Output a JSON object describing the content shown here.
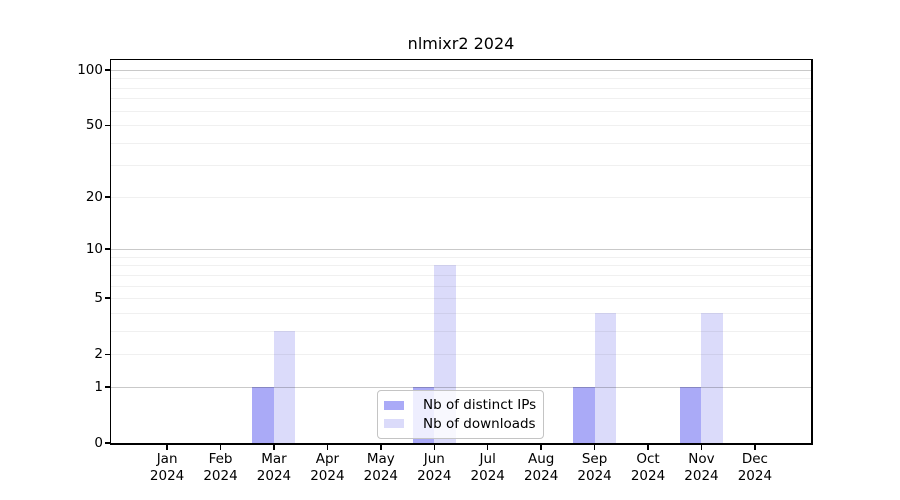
{
  "figure": {
    "title": "nlmixr2 2024"
  },
  "chart_data": {
    "type": "bar",
    "title": "nlmixr2 2024",
    "categories": [
      "Jan",
      "Feb",
      "Mar",
      "Apr",
      "May",
      "Jun",
      "Jul",
      "Aug",
      "Sep",
      "Oct",
      "Nov",
      "Dec"
    ],
    "x_year": "2024",
    "series": [
      {
        "name": "Nb of distinct IPs",
        "color": "#aaaaf7",
        "values": [
          0,
          0,
          1,
          0,
          0,
          1,
          0,
          0,
          1,
          0,
          1,
          0
        ]
      },
      {
        "name": "Nb of downloads",
        "color": "#dbdbfa",
        "values": [
          0,
          0,
          3,
          0,
          0,
          8,
          0,
          0,
          4,
          0,
          4,
          0
        ]
      }
    ],
    "yscale": "log1p",
    "ylim": [
      0,
      113
    ],
    "yticks": [
      0,
      1,
      2,
      5,
      10,
      20,
      50,
      100
    ],
    "minor_gridlines": [
      2,
      3,
      4,
      5,
      6,
      7,
      8,
      9,
      20,
      30,
      40,
      50,
      60,
      70,
      80,
      90
    ],
    "major_gridlines": [
      1,
      10,
      100
    ],
    "grid": true,
    "legend": {
      "position": "lower center",
      "entries": [
        "Nb of distinct IPs",
        "Nb of downloads"
      ]
    },
    "colors": {
      "grid_minor": "rgba(0,0,0,0.06)",
      "grid_major": "rgba(0,0,0,0.21)",
      "axis": "#000000",
      "background": "#ffffff"
    }
  }
}
